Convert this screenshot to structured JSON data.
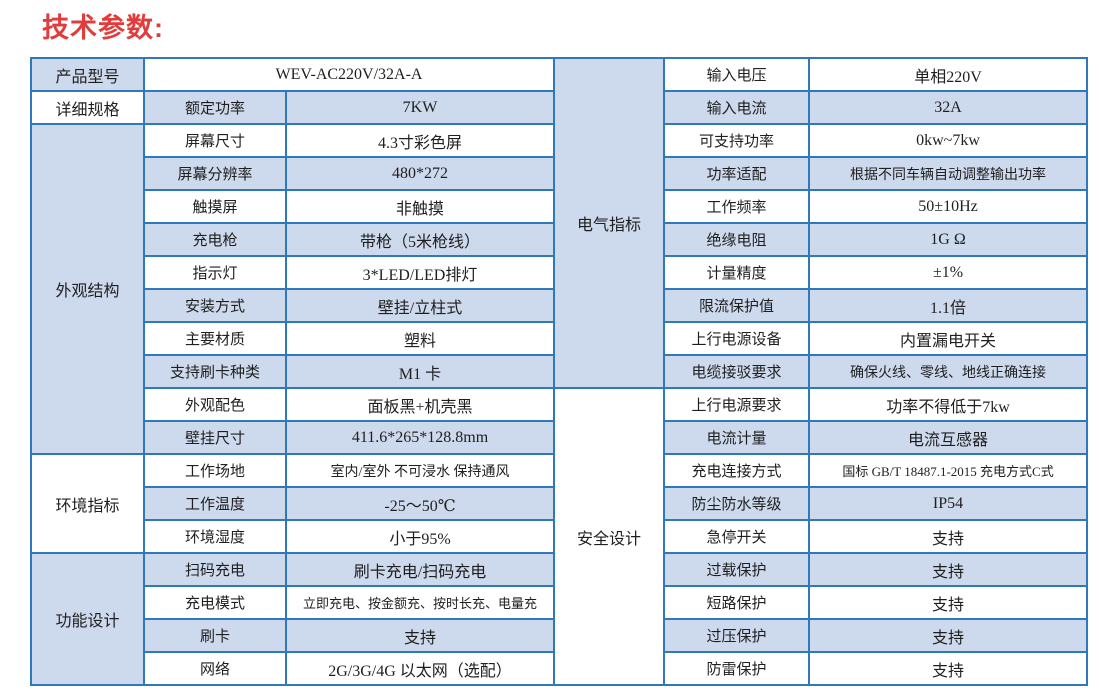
{
  "page_title": "技术参数:",
  "colors": {
    "title_red": "#e23b3b",
    "border_blue": "#2e78bb",
    "cell_light_blue": "#cdd9ec",
    "text": "#1f1f1f",
    "background": "#ffffff"
  },
  "table": {
    "row_count": 19,
    "left": {
      "categories": [
        {
          "label": "产品型号",
          "span": 1,
          "shaded": true
        },
        {
          "label": "详细规格",
          "span": 1,
          "shaded": false
        },
        {
          "label": "外观结构",
          "span": 10,
          "shaded": true
        },
        {
          "label": "环境指标",
          "span": 3,
          "shaded": false
        },
        {
          "label": "功能设计",
          "span": 4,
          "shaded": true
        }
      ],
      "rows": [
        {
          "param": "",
          "value": "WEV-AC220V/32A-A",
          "merged": true
        },
        {
          "param": "额定功率",
          "value": "7KW"
        },
        {
          "param": "屏幕尺寸",
          "value": "4.3寸彩色屏"
        },
        {
          "param": "屏幕分辨率",
          "value": "480*272"
        },
        {
          "param": "触摸屏",
          "value": "非触摸"
        },
        {
          "param": "充电枪",
          "value": "带枪（5米枪线）"
        },
        {
          "param": "指示灯",
          "value": "3*LED/LED排灯"
        },
        {
          "param": "安装方式",
          "value": "壁挂/立柱式"
        },
        {
          "param": "主要材质",
          "value": "塑料"
        },
        {
          "param": "支持刷卡种类",
          "value": "M1 卡"
        },
        {
          "param": "外观配色",
          "value": "面板黑+机壳黑"
        },
        {
          "param": "壁挂尺寸",
          "value": "411.6*265*128.8mm"
        },
        {
          "param": "工作场地",
          "value": "室内/室外 不可浸水 保持通风",
          "size": "md"
        },
        {
          "param": "工作温度",
          "value": "-25～50℃"
        },
        {
          "param": "环境湿度",
          "value": "小于95%"
        },
        {
          "param": "扫码充电",
          "value": "刷卡充电/扫码充电"
        },
        {
          "param": "充电模式",
          "value": "立即充电、按金额充、按时长充、电量充",
          "size": "sm"
        },
        {
          "param": "刷卡",
          "value": "支持"
        },
        {
          "param": "网络",
          "value": "2G/3G/4G  以太网（选配）"
        }
      ]
    },
    "right": {
      "categories": [
        {
          "label": "电气指标",
          "span": 10,
          "shaded": true
        },
        {
          "label": "安全设计",
          "span": 9,
          "shaded": false
        }
      ],
      "rows": [
        {
          "param": "输入电压",
          "value": "单相220V"
        },
        {
          "param": "输入电流",
          "value": "32A"
        },
        {
          "param": "可支持功率",
          "value": "0kw~7kw"
        },
        {
          "param": "功率适配",
          "value": "根据不同车辆自动调整输出功率",
          "size": "md"
        },
        {
          "param": "工作频率",
          "value": "50±10Hz"
        },
        {
          "param": "绝缘电阻",
          "value": "1G Ω"
        },
        {
          "param": "计量精度",
          "value": "±1%"
        },
        {
          "param": "限流保护值",
          "value": "1.1倍"
        },
        {
          "param": "上行电源设备",
          "value": "内置漏电开关"
        },
        {
          "param": "电缆接驳要求",
          "value": "确保火线、零线、地线正确连接",
          "size": "md"
        },
        {
          "param": "上行电源要求",
          "value": "功率不得低于7kw"
        },
        {
          "param": "电流计量",
          "value": "电流互感器"
        },
        {
          "param": "充电连接方式",
          "value": "国标 GB/T 18487.1-2015   充电方式C式",
          "size": "sm"
        },
        {
          "param": "防尘防水等级",
          "value": "IP54"
        },
        {
          "param": "急停开关",
          "value": "支持"
        },
        {
          "param": "过载保护",
          "value": "支持"
        },
        {
          "param": "短路保护",
          "value": "支持"
        },
        {
          "param": "过压保护",
          "value": "支持"
        },
        {
          "param": "防雷保护",
          "value": "支持"
        }
      ]
    }
  }
}
